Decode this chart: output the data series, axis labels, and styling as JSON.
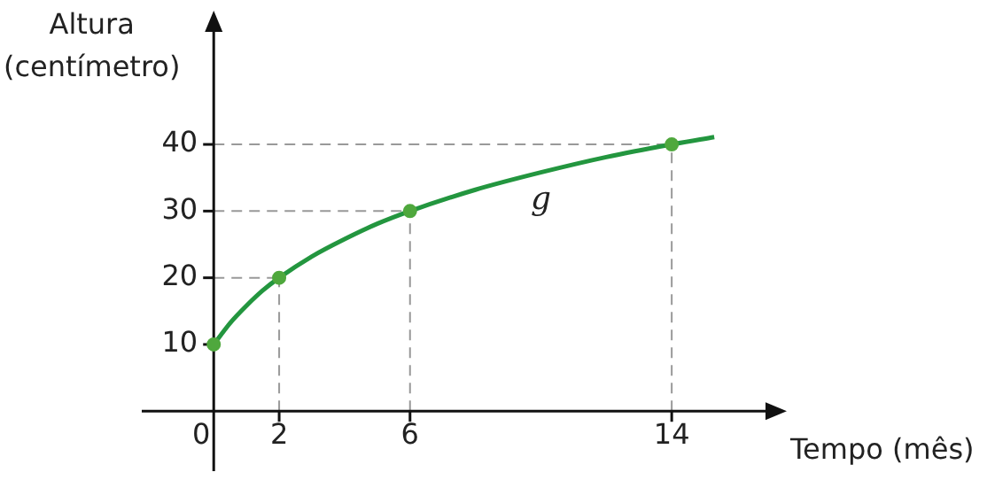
{
  "chart_data": {
    "type": "line",
    "xlabel": "Tempo (mês)",
    "ylabel": "Altura\n(centímetro)",
    "xlim": [
      -2.2,
      17.3
    ],
    "ylim": [
      -9,
      59
    ],
    "xticks": [
      0,
      2,
      6,
      14
    ],
    "yticks": [
      10,
      20,
      30,
      40
    ],
    "grid": false,
    "legend": false,
    "marker": "circle",
    "series": [
      {
        "type": "line",
        "name": "g",
        "color": "#23963f",
        "marker": "none",
        "x": [
          0,
          0.5,
          1,
          1.5,
          2,
          3,
          4,
          5,
          6,
          8,
          10,
          12,
          14,
          15.3
        ],
        "values": [
          10,
          13.2,
          15.8,
          18.1,
          20,
          23.2,
          25.8,
          28.1,
          30,
          33.2,
          35.8,
          38.1,
          40,
          41.1
        ]
      },
      {
        "type": "scatter",
        "color": "#4fa83d",
        "x": [
          0,
          2,
          6,
          14
        ],
        "values": [
          10,
          20,
          30,
          40
        ]
      }
    ],
    "ref_lines": [
      {
        "axis": "x",
        "value": 2,
        "color": "#999999",
        "line_style": "dashed"
      },
      {
        "axis": "x",
        "value": 6,
        "color": "#999999",
        "line_style": "dashed"
      },
      {
        "axis": "x",
        "value": 14,
        "color": "#999999",
        "line_style": "dashed"
      },
      {
        "axis": "y",
        "value": 20,
        "color": "#999999",
        "line_style": "dashed"
      },
      {
        "axis": "y",
        "value": 30,
        "color": "#999999",
        "line_style": "dashed"
      },
      {
        "axis": "y",
        "value": 40,
        "color": "#999999",
        "line_style": "dashed"
      }
    ]
  }
}
